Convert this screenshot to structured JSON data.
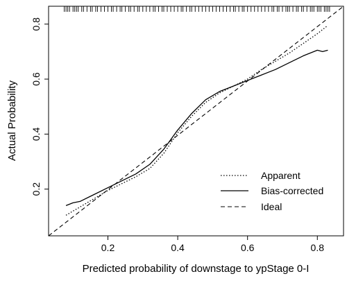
{
  "chart_data": {
    "type": "line",
    "xlabel": "Predicted probability of downstage to ypStage 0-I",
    "ylabel": "Actual Probability",
    "xlim": [
      0.03,
      0.875
    ],
    "ylim": [
      0.03,
      0.865
    ],
    "x_ticks": [
      0.2,
      0.4,
      0.6,
      0.8
    ],
    "x_tick_labels": [
      "0.2",
      "0.4",
      "0.6",
      "0.8"
    ],
    "y_ticks": [
      0.2,
      0.4,
      0.6,
      0.8
    ],
    "y_tick_labels": [
      "0.2",
      "0.4",
      "0.6",
      "0.8"
    ],
    "legend": {
      "position": "bottom-right",
      "entries": [
        {
          "label": "Apparent",
          "style": "dotted"
        },
        {
          "label": "Bias-corrected",
          "style": "solid"
        },
        {
          "label": "Ideal",
          "style": "dashed"
        }
      ]
    },
    "series": [
      {
        "name": "Apparent",
        "style": "dotted",
        "x": [
          0.08,
          0.12,
          0.16,
          0.2,
          0.24,
          0.28,
          0.32,
          0.36,
          0.4,
          0.44,
          0.48,
          0.52,
          0.56,
          0.6,
          0.64,
          0.68,
          0.72,
          0.76,
          0.8,
          0.83
        ],
        "y": [
          0.105,
          0.135,
          0.165,
          0.195,
          0.22,
          0.245,
          0.275,
          0.33,
          0.405,
          0.465,
          0.515,
          0.55,
          0.575,
          0.6,
          0.635,
          0.665,
          0.695,
          0.73,
          0.765,
          0.795
        ]
      },
      {
        "name": "Bias-corrected",
        "style": "solid",
        "x": [
          0.08,
          0.1,
          0.12,
          0.16,
          0.2,
          0.24,
          0.28,
          0.32,
          0.36,
          0.4,
          0.44,
          0.48,
          0.52,
          0.56,
          0.6,
          0.64,
          0.68,
          0.72,
          0.76,
          0.8,
          0.815,
          0.83
        ],
        "y": [
          0.14,
          0.15,
          0.155,
          0.18,
          0.205,
          0.23,
          0.255,
          0.29,
          0.345,
          0.415,
          0.475,
          0.525,
          0.555,
          0.575,
          0.595,
          0.615,
          0.635,
          0.66,
          0.685,
          0.705,
          0.7,
          0.705
        ]
      }
    ],
    "ideal_line": {
      "name": "Ideal",
      "style": "dashed",
      "from": [
        0.03,
        0.03
      ],
      "to": [
        0.875,
        0.865
      ]
    },
    "rug_x": [
      0.075,
      0.08,
      0.085,
      0.09,
      0.1,
      0.105,
      0.11,
      0.115,
      0.125,
      0.13,
      0.14,
      0.15,
      0.155,
      0.165,
      0.17,
      0.18,
      0.19,
      0.2,
      0.21,
      0.215,
      0.225,
      0.235,
      0.24,
      0.25,
      0.26,
      0.265,
      0.275,
      0.285,
      0.29,
      0.3,
      0.31,
      0.32,
      0.33,
      0.335,
      0.345,
      0.355,
      0.36,
      0.37,
      0.38,
      0.39,
      0.4,
      0.41,
      0.415,
      0.425,
      0.435,
      0.44,
      0.45,
      0.46,
      0.47,
      0.48,
      0.49,
      0.5,
      0.51,
      0.52,
      0.53,
      0.54,
      0.55,
      0.56,
      0.565,
      0.575,
      0.585,
      0.59,
      0.6,
      0.61,
      0.62,
      0.63,
      0.64,
      0.65,
      0.66,
      0.67,
      0.675,
      0.685,
      0.69,
      0.7,
      0.71,
      0.715,
      0.72,
      0.73,
      0.74,
      0.745,
      0.755,
      0.76,
      0.77,
      0.78,
      0.785,
      0.79,
      0.8,
      0.805,
      0.81,
      0.82,
      0.825,
      0.83,
      0.835
    ],
    "grid": false
  }
}
